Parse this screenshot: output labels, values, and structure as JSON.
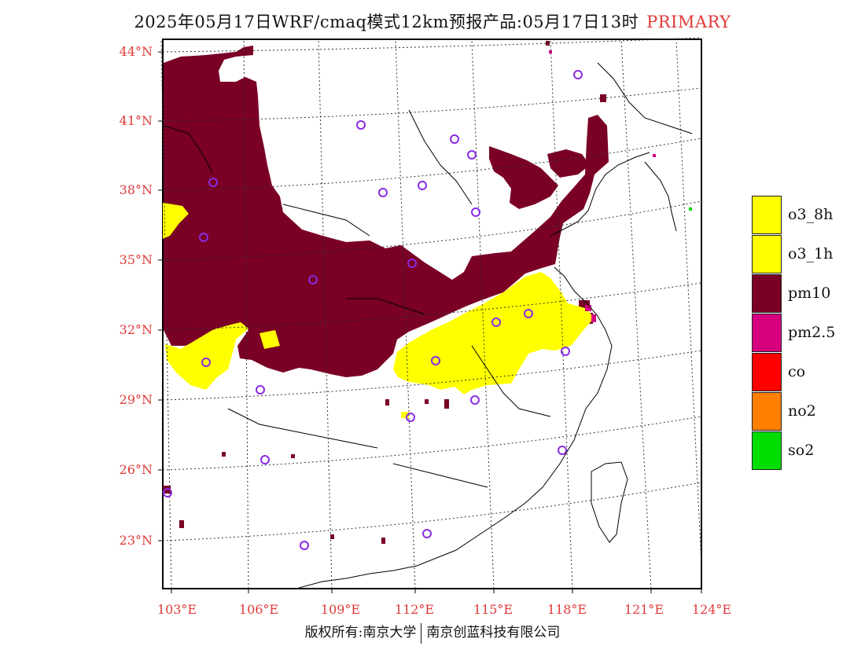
{
  "title": {
    "main": "2025年05月17日WRF/cmaq模式12km预报产品:05月17日13时",
    "product": "PRIMARY"
  },
  "axes": {
    "latitudes": [
      "44°N",
      "41°N",
      "38°N",
      "35°N",
      "32°N",
      "29°N",
      "26°N",
      "23°N"
    ],
    "longitudes": [
      "103°E",
      "106°E",
      "109°E",
      "112°E",
      "115°E",
      "118°E",
      "121°E",
      "124°E"
    ]
  },
  "legend": [
    {
      "label": "o3_8h",
      "color": "#ffff00"
    },
    {
      "label": "o3_1h",
      "color": "#ffff00"
    },
    {
      "label": "pm10",
      "color": "#7a0025"
    },
    {
      "label": "pm2.5",
      "color": "#d6007f"
    },
    {
      "label": "co",
      "color": "#ff0000"
    },
    {
      "label": "no2",
      "color": "#ff7f00"
    },
    {
      "label": "so2",
      "color": "#00dd00"
    }
  ],
  "footer": {
    "copyright": "版权所有:南京大学",
    "company": "南京创蓝科技有限公司"
  }
}
